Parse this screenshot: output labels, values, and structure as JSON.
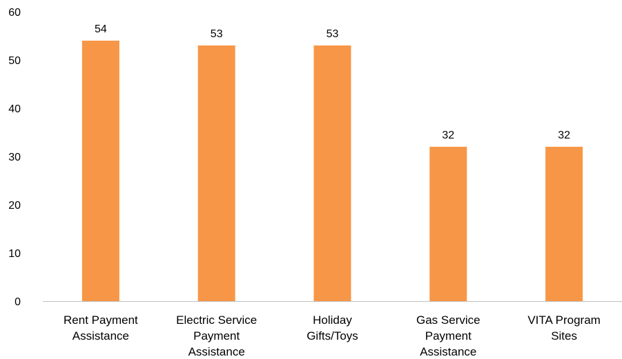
{
  "chart_data": {
    "type": "bar",
    "title": "",
    "xlabel": "",
    "ylabel": "",
    "ylim": [
      0,
      60
    ],
    "yticks": [
      0,
      10,
      20,
      30,
      40,
      50,
      60
    ],
    "grid": false,
    "legend": "none",
    "categories": [
      "Rent Payment Assistance",
      "Electric Service Payment Assistance",
      "Holiday Gifts/Toys",
      "Gas Service Payment Assistance",
      "VITA Program Sites"
    ],
    "category_lines": [
      [
        "Rent Payment",
        "Assistance"
      ],
      [
        "Electric Service",
        "Payment",
        "Assistance"
      ],
      [
        "Holiday",
        "Gifts/Toys"
      ],
      [
        "Gas Service",
        "Payment",
        "Assistance"
      ],
      [
        "VITA Program",
        "Sites"
      ]
    ],
    "values": [
      54,
      53,
      53,
      32,
      32
    ],
    "data_labels": [
      "54",
      "53",
      "53",
      "32",
      "32"
    ],
    "colors": {
      "bar": "#F79646",
      "axis": "#bfbfbf",
      "text": "#000000"
    }
  }
}
